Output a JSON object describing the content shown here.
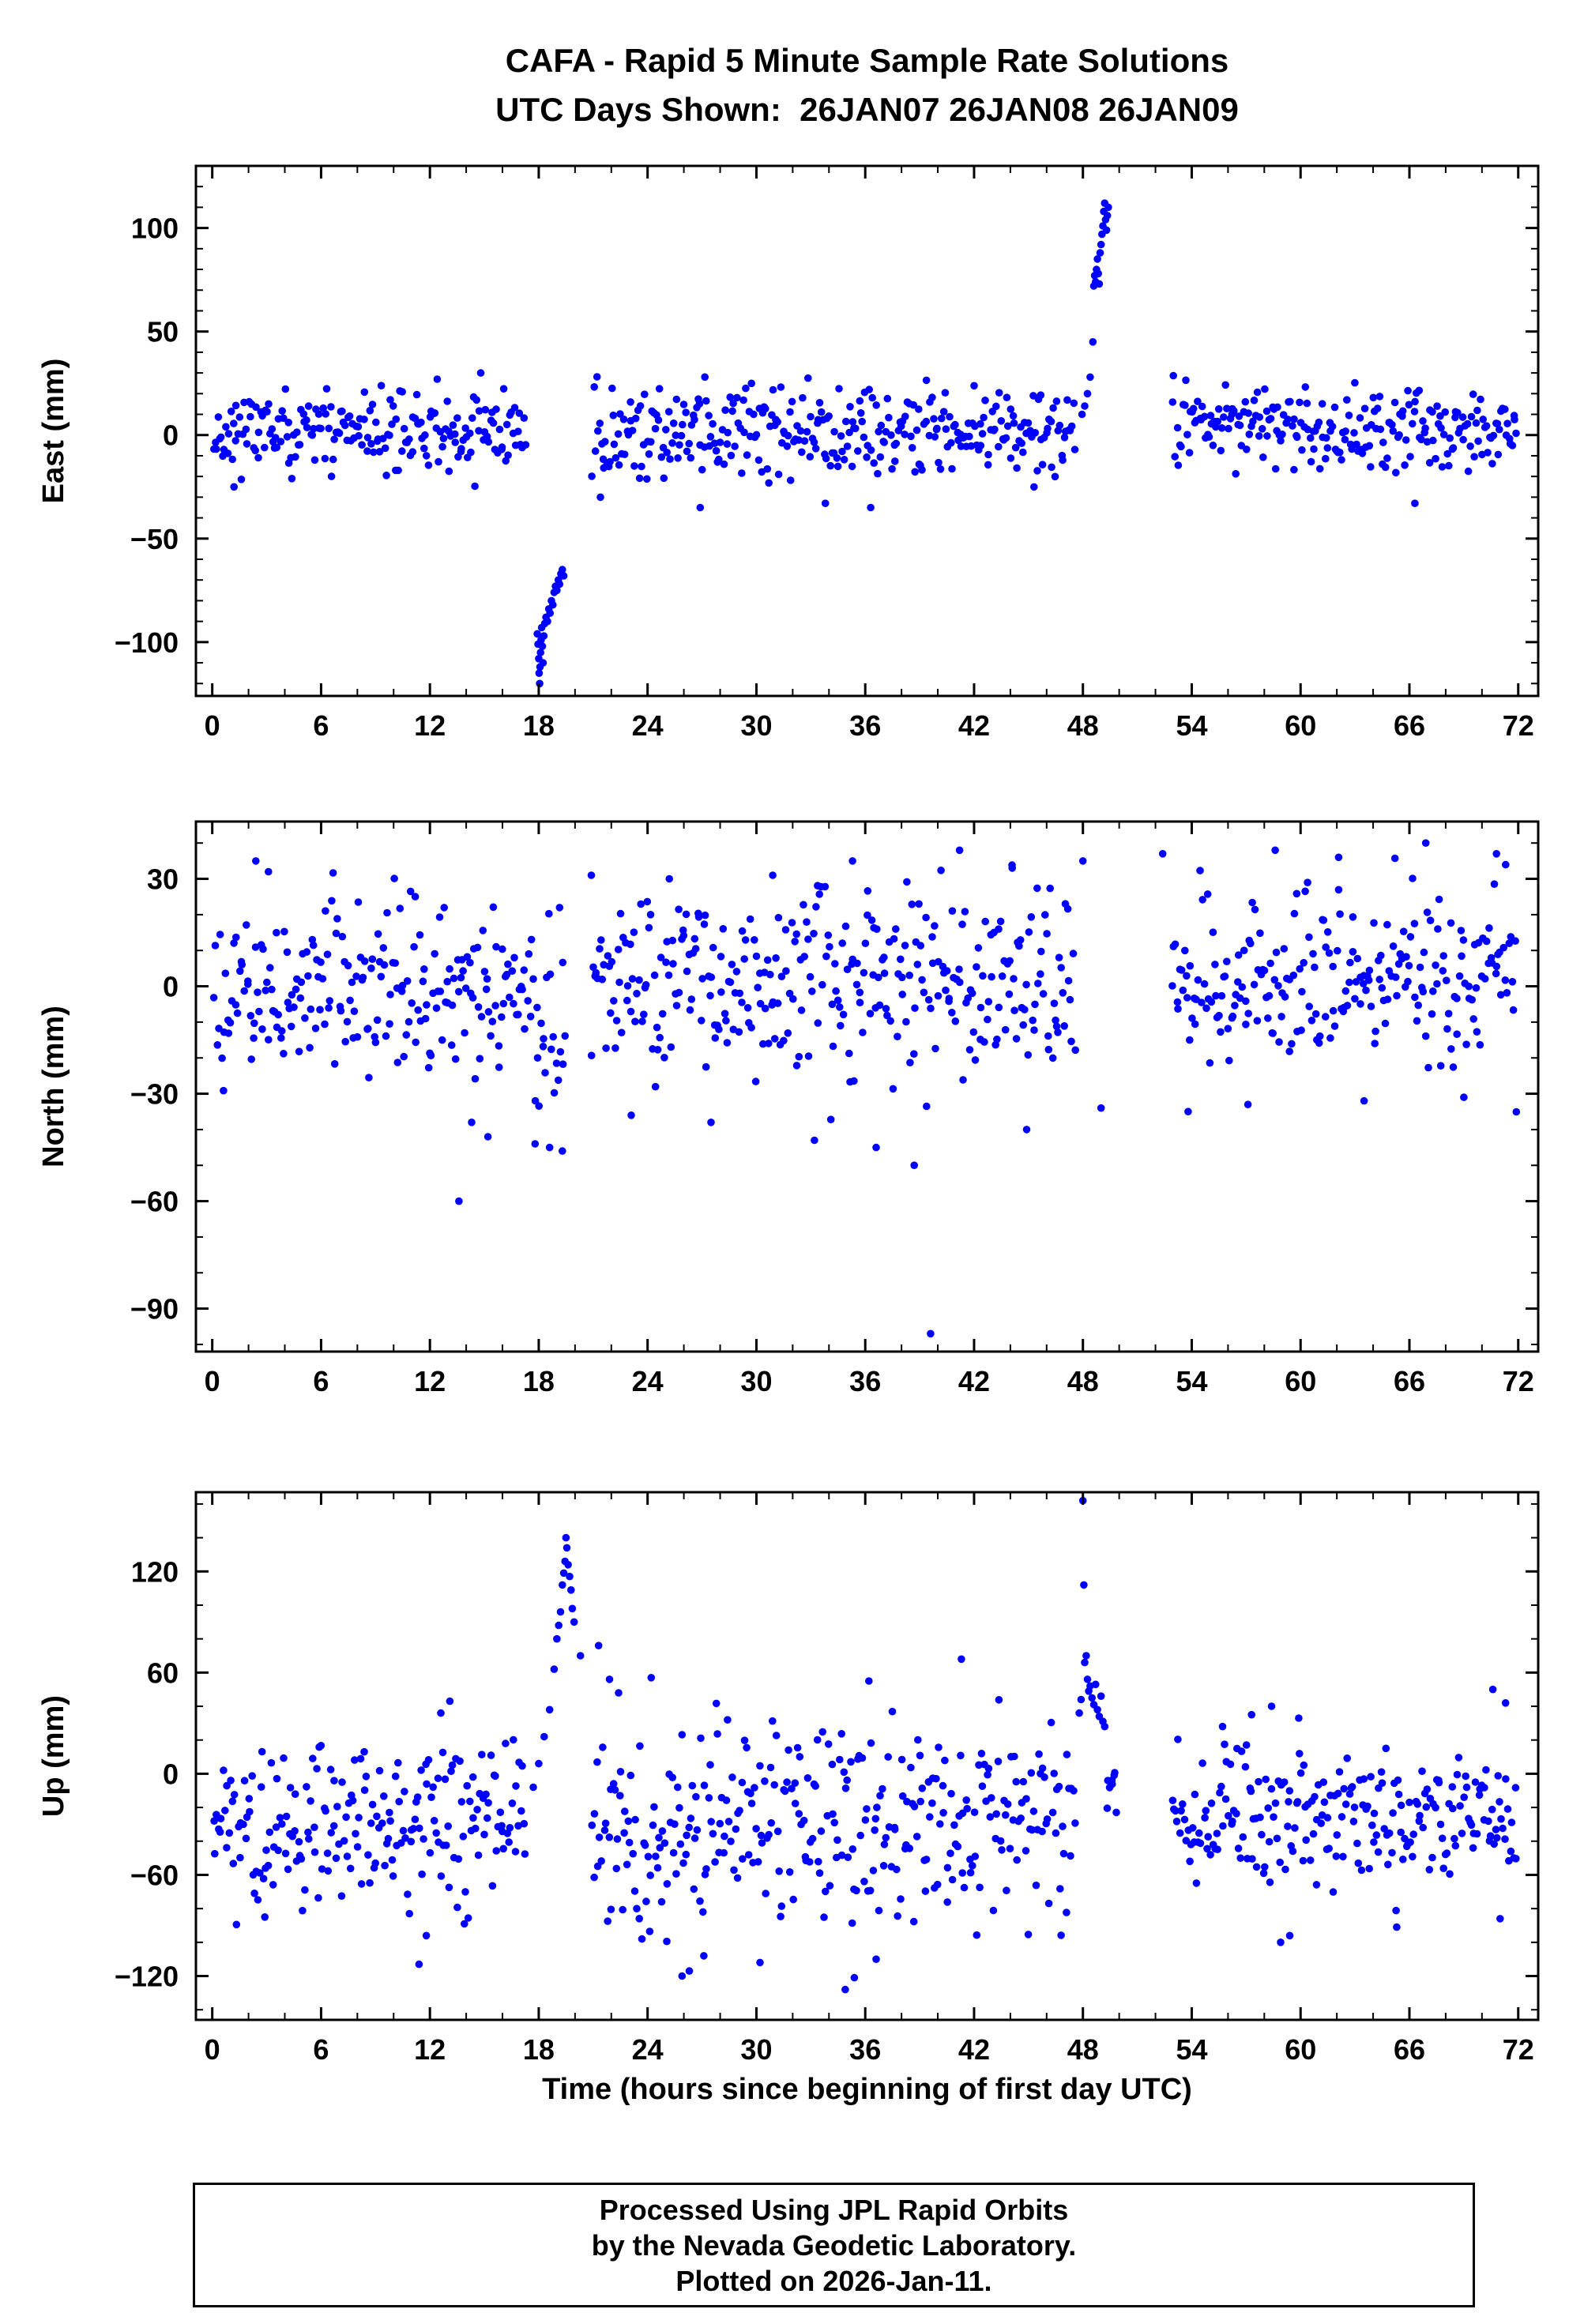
{
  "title": {
    "line1": "CAFA - Rapid 5 Minute Sample Rate Solutions",
    "line2": "UTC Days Shown:  26JAN07 26JAN08 26JAN09"
  },
  "footer": {
    "line1": "Processed Using JPL Rapid Orbits",
    "line2": "by the Nevada Geodetic Laboratory.",
    "line3": "Plotted on 2026-Jan-11."
  },
  "colors": {
    "points": "#0000ff",
    "frame": "#000000",
    "background": "#ffffff",
    "text": "#000000"
  },
  "chart_data": [
    {
      "type": "scatter",
      "name": "east",
      "ylabel": "East (mm)",
      "ylim": [
        -126,
        130
      ],
      "yticks": [
        -100,
        -50,
        0,
        50,
        100
      ],
      "yminor_step": 10,
      "xlim": [
        -0.9,
        73.1
      ],
      "xticks": [
        0,
        6,
        12,
        18,
        24,
        30,
        36,
        42,
        48,
        54,
        60,
        66,
        72
      ],
      "xminor_step": 2,
      "segments": [
        {
          "x0": 0.05,
          "x1": 17.3,
          "n": 207,
          "mean": 2,
          "std": 10,
          "clip": [
            -27,
            33
          ],
          "seed": 11
        },
        {
          "x0": 20.9,
          "x1": 47.6,
          "n": 321,
          "mean": 2,
          "std": 11,
          "clip": [
            -29,
            34
          ],
          "seed": 12
        },
        {
          "x0": 52.9,
          "x1": 71.95,
          "n": 229,
          "mean": 3,
          "std": 10,
          "clip": [
            -24,
            30
          ],
          "seed": 13
        }
      ],
      "extra_points": [
        [
          17.92,
          -96
        ],
        [
          17.96,
          -101
        ],
        [
          18.0,
          -108
        ],
        [
          18.02,
          -115
        ],
        [
          18.05,
          -120
        ],
        [
          18.07,
          -112
        ],
        [
          18.1,
          -105
        ],
        [
          18.13,
          -99
        ],
        [
          18.16,
          -93
        ],
        [
          18.2,
          -102
        ],
        [
          18.24,
          -110
        ],
        [
          18.28,
          -97
        ],
        [
          18.33,
          -91
        ],
        [
          18.4,
          -88
        ],
        [
          18.48,
          -90
        ],
        [
          18.55,
          -84
        ],
        [
          18.62,
          -86
        ],
        [
          18.7,
          -80
        ],
        [
          18.78,
          -82
        ],
        [
          18.85,
          -76
        ],
        [
          18.92,
          -73
        ],
        [
          19.0,
          -75
        ],
        [
          19.08,
          -70
        ],
        [
          19.15,
          -72
        ],
        [
          19.22,
          -67
        ],
        [
          19.3,
          -65
        ],
        [
          19.38,
          -68
        ],
        [
          47.95,
          10
        ],
        [
          48.1,
          14
        ],
        [
          48.25,
          20
        ],
        [
          48.4,
          28
        ],
        [
          48.55,
          45
        ],
        [
          48.6,
          72
        ],
        [
          48.65,
          77
        ],
        [
          48.7,
          74
        ],
        [
          48.75,
          80
        ],
        [
          48.8,
          85
        ],
        [
          48.85,
          78
        ],
        [
          48.9,
          73
        ],
        [
          48.95,
          88
        ],
        [
          49.0,
          92
        ],
        [
          49.05,
          97
        ],
        [
          49.1,
          101
        ],
        [
          49.15,
          108
        ],
        [
          49.2,
          112
        ],
        [
          49.25,
          104
        ],
        [
          49.3,
          99
        ],
        [
          49.35,
          106
        ],
        [
          49.4,
          110
        ],
        [
          1.2,
          -25
        ],
        [
          21.4,
          -30
        ],
        [
          26.9,
          -35
        ],
        [
          33.8,
          -33
        ],
        [
          36.3,
          -35
        ],
        [
          66.3,
          -33
        ]
      ]
    },
    {
      "type": "scatter",
      "name": "north",
      "ylabel": "North (mm)",
      "ylim": [
        -102,
        46
      ],
      "yticks": [
        -90,
        -60,
        -30,
        0,
        30
      ],
      "yminor_step": 10,
      "xlim": [
        -0.9,
        73.1
      ],
      "xticks": [
        0,
        6,
        12,
        18,
        24,
        30,
        36,
        42,
        48,
        54,
        60,
        66,
        72
      ],
      "xminor_step": 2,
      "segments": [
        {
          "x0": 0.05,
          "x1": 17.3,
          "n": 207,
          "mean": 0,
          "std": 12,
          "clip": [
            -34,
            34
          ],
          "seed": 21
        },
        {
          "x0": 17.35,
          "x1": 19.5,
          "n": 26,
          "mean": -8,
          "std": 15,
          "clip": [
            -46,
            28
          ],
          "seed": 22
        },
        {
          "x0": 20.9,
          "x1": 47.6,
          "n": 321,
          "mean": 1,
          "std": 13,
          "clip": [
            -40,
            36
          ],
          "seed": 23
        },
        {
          "x0": 52.9,
          "x1": 71.95,
          "n": 229,
          "mean": 1,
          "std": 12,
          "clip": [
            -36,
            38
          ],
          "seed": 24
        }
      ],
      "extra_points": [
        [
          13.6,
          -60
        ],
        [
          39.6,
          -97
        ],
        [
          14.3,
          -38
        ],
        [
          15.2,
          -42
        ],
        [
          17.8,
          -44
        ],
        [
          18.6,
          -45
        ],
        [
          19.3,
          -46
        ],
        [
          23.1,
          -36
        ],
        [
          27.5,
          -38
        ],
        [
          33.2,
          -43
        ],
        [
          36.6,
          -45
        ],
        [
          38.7,
          -50
        ],
        [
          44.9,
          -40
        ],
        [
          49.0,
          -34
        ],
        [
          53.8,
          -35
        ],
        [
          57.1,
          -33
        ],
        [
          63.5,
          -32
        ],
        [
          69.0,
          -31
        ],
        [
          2.4,
          35
        ],
        [
          3.1,
          32
        ],
        [
          20.9,
          31
        ],
        [
          25.2,
          30
        ],
        [
          30.9,
          31
        ],
        [
          35.3,
          35
        ],
        [
          41.2,
          38
        ],
        [
          44.1,
          33
        ],
        [
          48.0,
          35
        ],
        [
          52.4,
          37
        ],
        [
          58.6,
          38
        ],
        [
          62.1,
          36
        ],
        [
          66.9,
          40
        ],
        [
          70.8,
          37
        ]
      ]
    },
    {
      "type": "scatter",
      "name": "up",
      "ylabel": "Up (mm)",
      "xlabel": "Time (hours since beginning of first day UTC)",
      "ylim": [
        -146,
        167
      ],
      "yticks": [
        -120,
        -60,
        0,
        60,
        120
      ],
      "yminor_step": 20,
      "xlim": [
        -0.9,
        73.1
      ],
      "xticks": [
        0,
        6,
        12,
        18,
        24,
        30,
        36,
        42,
        48,
        54,
        60,
        66,
        72
      ],
      "xminor_step": 2,
      "segments": [
        {
          "x0": 0.05,
          "x1": 17.3,
          "n": 207,
          "mean": -28,
          "std": 26,
          "clip": [
            -98,
            24
          ],
          "seed": 31
        },
        {
          "x0": 20.9,
          "x1": 47.6,
          "n": 321,
          "mean": -30,
          "std": 30,
          "clip": [
            -108,
            52
          ],
          "seed": 32
        },
        {
          "x0": 49.3,
          "x1": 49.9,
          "n": 8,
          "mean": -12,
          "std": 15,
          "clip": [
            -40,
            20
          ],
          "seed": 33
        },
        {
          "x0": 52.9,
          "x1": 71.95,
          "n": 229,
          "mean": -27,
          "std": 24,
          "clip": [
            -88,
            24
          ],
          "seed": 34
        }
      ],
      "extra_points": [
        [
          17.7,
          -8
        ],
        [
          18.0,
          6
        ],
        [
          18.3,
          22
        ],
        [
          18.6,
          38
        ],
        [
          18.85,
          62
        ],
        [
          19.0,
          80
        ],
        [
          19.1,
          88
        ],
        [
          19.2,
          96
        ],
        [
          19.3,
          112
        ],
        [
          19.38,
          119
        ],
        [
          19.45,
          126
        ],
        [
          19.5,
          140
        ],
        [
          19.55,
          134
        ],
        [
          19.62,
          124
        ],
        [
          19.7,
          117
        ],
        [
          19.78,
          109
        ],
        [
          19.85,
          98
        ],
        [
          19.95,
          90
        ],
        [
          20.3,
          70
        ],
        [
          21.3,
          76
        ],
        [
          21.9,
          56
        ],
        [
          22.4,
          48
        ],
        [
          47.8,
          36
        ],
        [
          47.9,
          44
        ],
        [
          48.0,
          162
        ],
        [
          48.05,
          112
        ],
        [
          48.1,
          66
        ],
        [
          48.18,
          70
        ],
        [
          48.25,
          56
        ],
        [
          48.32,
          49
        ],
        [
          48.4,
          52
        ],
        [
          48.5,
          45
        ],
        [
          48.6,
          41
        ],
        [
          48.7,
          53
        ],
        [
          48.8,
          38
        ],
        [
          48.9,
          34
        ],
        [
          49.0,
          46
        ],
        [
          49.1,
          31
        ],
        [
          49.2,
          28
        ],
        [
          2.9,
          -85
        ],
        [
          11.4,
          -113
        ],
        [
          11.8,
          -96
        ],
        [
          13.9,
          -89
        ],
        [
          25.9,
          -120
        ],
        [
          26.3,
          -117
        ],
        [
          27.1,
          -108
        ],
        [
          30.2,
          -112
        ],
        [
          34.9,
          -128
        ],
        [
          35.4,
          -121
        ],
        [
          36.6,
          -110
        ],
        [
          58.9,
          -100
        ],
        [
          59.4,
          -96
        ],
        [
          65.3,
          -91
        ],
        [
          71.0,
          -86
        ],
        [
          12.6,
          36
        ],
        [
          13.1,
          43
        ],
        [
          24.2,
          57
        ],
        [
          36.2,
          55
        ],
        [
          41.3,
          68
        ],
        [
          55.7,
          28
        ],
        [
          57.3,
          35
        ],
        [
          58.4,
          40
        ],
        [
          59.9,
          33
        ],
        [
          70.6,
          50
        ],
        [
          71.3,
          42
        ]
      ]
    }
  ]
}
